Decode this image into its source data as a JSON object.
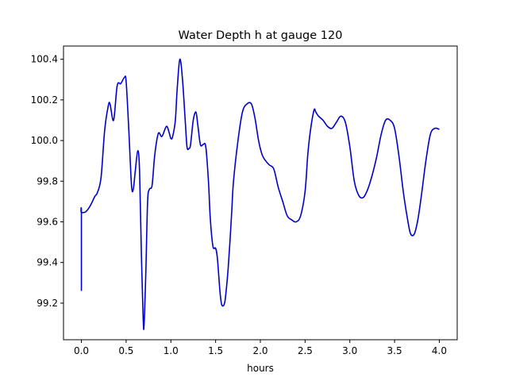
{
  "chart_data": {
    "type": "line",
    "title": "Water Depth h at gauge 120",
    "xlabel": "hours",
    "ylabel": "",
    "xlim": [
      -0.2,
      4.2
    ],
    "ylim": [
      99.02,
      100.465
    ],
    "xticks": [
      0.0,
      0.5,
      1.0,
      1.5,
      2.0,
      2.5,
      3.0,
      3.5,
      4.0
    ],
    "xtick_labels": [
      "0.0",
      "0.5",
      "1.0",
      "1.5",
      "2.0",
      "2.5",
      "3.0",
      "3.5",
      "4.0"
    ],
    "yticks": [
      99.2,
      99.4,
      99.6,
      99.8,
      100.0,
      100.2,
      100.4
    ],
    "ytick_labels": [
      "99.2",
      "99.4",
      "99.6",
      "99.8",
      "100.0",
      "100.2",
      "100.4"
    ],
    "grid": false,
    "series": [
      {
        "color": "#0000cc",
        "x": [
          0.0,
          0.0,
          0.0,
          0.05,
          0.1,
          0.15,
          0.18,
          0.22,
          0.26,
          0.3,
          0.32,
          0.36,
          0.4,
          0.44,
          0.48,
          0.5,
          0.53,
          0.56,
          0.58,
          0.6,
          0.63,
          0.65,
          0.67,
          0.69,
          0.7,
          0.72,
          0.74,
          0.76,
          0.79,
          0.82,
          0.86,
          0.9,
          0.95,
          0.98,
          1.0,
          1.02,
          1.05,
          1.07,
          1.1,
          1.13,
          1.16,
          1.18,
          1.2,
          1.22,
          1.25,
          1.28,
          1.3,
          1.33,
          1.36,
          1.39,
          1.42,
          1.44,
          1.47,
          1.5,
          1.52,
          1.55,
          1.57,
          1.6,
          1.62,
          1.64,
          1.66,
          1.68,
          1.7,
          1.75,
          1.8,
          1.85,
          1.9,
          1.94,
          1.98,
          2.02,
          2.06,
          2.1,
          2.15,
          2.2,
          2.25,
          2.3,
          2.35,
          2.4,
          2.45,
          2.5,
          2.53,
          2.56,
          2.6,
          2.62,
          2.65,
          2.7,
          2.75,
          2.8,
          2.85,
          2.9,
          2.95,
          3.0,
          3.05,
          3.1,
          3.15,
          3.2,
          3.25,
          3.3,
          3.35,
          3.4,
          3.45,
          3.5,
          3.55,
          3.6,
          3.65,
          3.68,
          3.72,
          3.76,
          3.8,
          3.85,
          3.9,
          3.95,
          4.0
        ],
        "y": [
          99.26,
          99.64,
          99.645,
          99.65,
          99.68,
          99.725,
          99.745,
          99.82,
          100.05,
          100.17,
          100.18,
          100.1,
          100.27,
          100.28,
          100.31,
          100.29,
          100.05,
          99.78,
          99.76,
          99.84,
          99.95,
          99.85,
          99.45,
          99.13,
          99.09,
          99.35,
          99.7,
          99.76,
          99.78,
          99.93,
          100.035,
          100.02,
          100.07,
          100.04,
          100.01,
          100.02,
          100.1,
          100.25,
          100.4,
          100.3,
          100.1,
          99.97,
          99.96,
          99.98,
          100.1,
          100.14,
          100.08,
          99.98,
          99.98,
          99.97,
          99.8,
          99.62,
          99.48,
          99.47,
          99.42,
          99.25,
          99.19,
          99.2,
          99.27,
          99.37,
          99.5,
          99.65,
          99.8,
          100.0,
          100.14,
          100.18,
          100.18,
          100.11,
          100.0,
          99.93,
          99.9,
          99.88,
          99.86,
          99.77,
          99.7,
          99.63,
          99.61,
          99.6,
          99.63,
          99.75,
          99.93,
          100.05,
          100.15,
          100.14,
          100.12,
          100.1,
          100.07,
          100.06,
          100.09,
          100.12,
          100.09,
          99.97,
          99.8,
          99.73,
          99.72,
          99.76,
          99.83,
          99.92,
          100.03,
          100.1,
          100.1,
          100.06,
          99.92,
          99.74,
          99.6,
          99.54,
          99.54,
          99.61,
          99.73,
          99.9,
          100.03,
          100.06,
          100.055
        ]
      }
    ]
  }
}
